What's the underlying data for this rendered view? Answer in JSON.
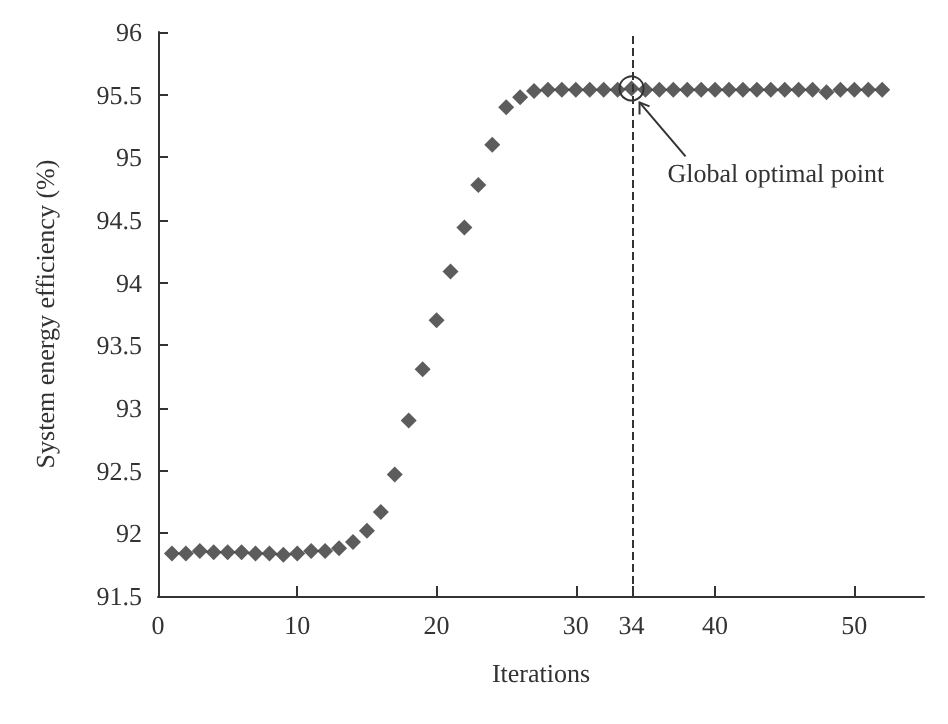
{
  "chart_data": {
    "type": "scatter",
    "xlabel": "Iterations",
    "ylabel": "System energy efficiency (%)",
    "x": [
      1,
      2,
      3,
      4,
      5,
      6,
      7,
      8,
      9,
      10,
      11,
      12,
      13,
      14,
      15,
      16,
      17,
      18,
      19,
      20,
      21,
      22,
      23,
      24,
      25,
      26,
      27,
      28,
      29,
      30,
      31,
      32,
      33,
      34,
      35,
      36,
      37,
      38,
      39,
      40,
      41,
      42,
      43,
      44,
      45,
      46,
      47,
      48,
      49,
      50,
      51,
      52
    ],
    "series": [
      {
        "color": "#333333",
        "values": [
          91.84,
          91.84,
          91.86,
          91.85,
          91.85,
          91.85,
          91.84,
          91.84,
          91.83,
          91.84,
          91.86,
          91.86,
          91.88,
          91.93,
          92.02,
          92.17,
          92.47,
          92.9,
          93.31,
          93.7,
          94.09,
          94.44,
          94.78,
          95.1,
          95.4,
          95.48,
          95.53,
          95.54,
          95.54,
          95.54,
          95.54,
          95.54,
          95.54,
          95.55,
          95.54,
          95.54,
          95.54,
          95.54,
          95.54,
          95.54,
          95.54,
          95.54,
          95.54,
          95.54,
          95.54,
          95.54,
          95.54,
          95.52,
          95.54,
          95.54,
          95.54,
          95.54
        ]
      }
    ],
    "xlim": [
      0,
      55
    ],
    "xticks": [
      0,
      10,
      20,
      30,
      34,
      40,
      50
    ],
    "ylim": [
      91.5,
      96
    ],
    "yticks": [
      91.5,
      92,
      92.5,
      93,
      93.5,
      94,
      94.5,
      95,
      95.5,
      96
    ],
    "marker": "diamond",
    "grid": false,
    "ref_lines": [
      {
        "axis": "x",
        "value": 34,
        "line_style": "dashed",
        "color": "#333333"
      }
    ],
    "annotations": [
      {
        "text": "Global optimal point",
        "x": 34,
        "y": 95.55
      }
    ]
  }
}
